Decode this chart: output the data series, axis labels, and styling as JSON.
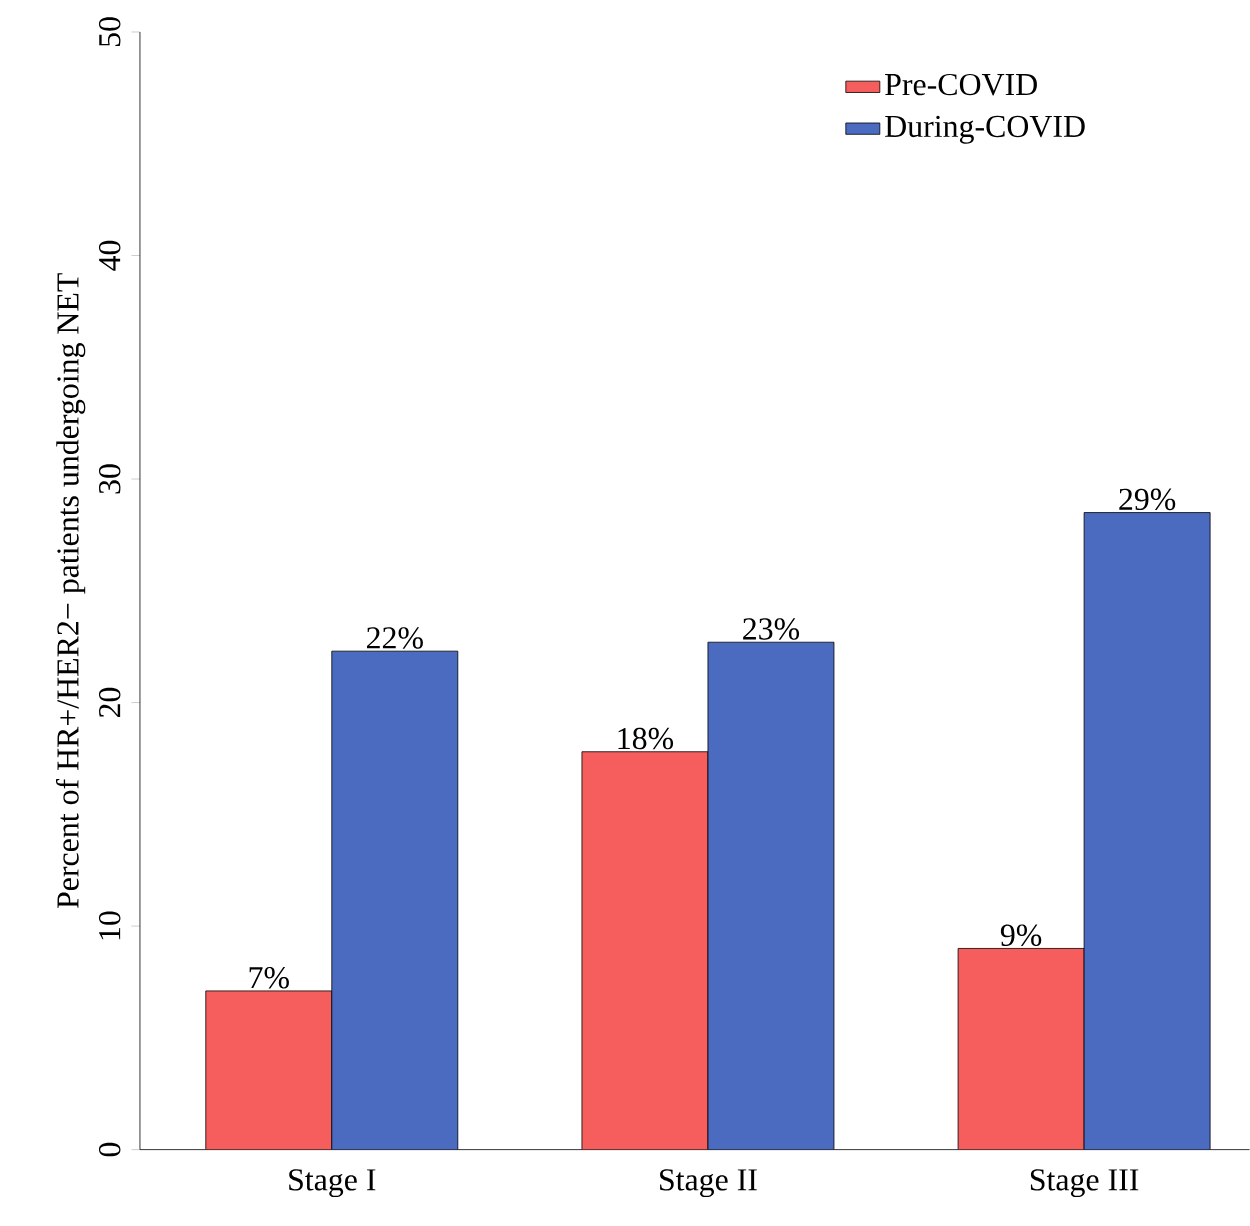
{
  "chart_data": {
    "type": "bar",
    "categories": [
      "Stage I",
      "Stage II",
      "Stage III"
    ],
    "series": [
      {
        "name": "Pre-COVID",
        "color": "#f65e5e",
        "values": [
          7.1,
          17.8,
          9.0
        ],
        "value_labels": [
          "7%",
          "18%",
          "9%"
        ]
      },
      {
        "name": "During-COVID",
        "color": "#4a6bbf",
        "values": [
          22.3,
          22.7,
          28.5
        ],
        "value_labels": [
          "22%",
          "23%",
          "29%"
        ]
      }
    ],
    "ylabel": "Percent of HR+/HER2− patients undergoing NET",
    "ylim": [
      0,
      50
    ],
    "yticks": [
      0,
      10,
      20,
      30,
      40,
      50
    ],
    "legend": "top right"
  }
}
